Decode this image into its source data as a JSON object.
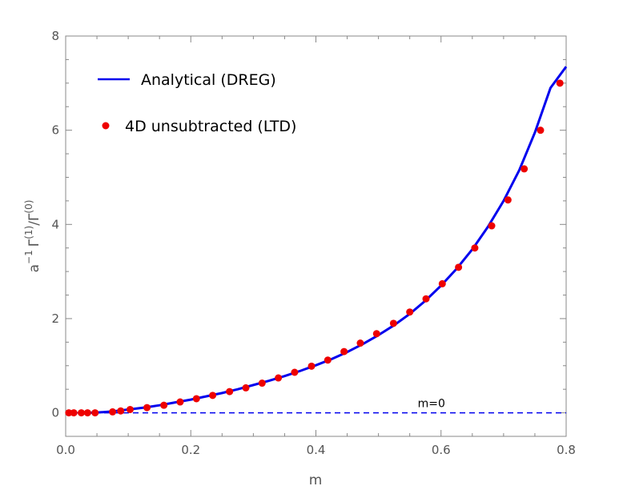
{
  "chart_data": {
    "type": "line",
    "xlabel": "m",
    "ylabel_base": "a",
    "ylabel_exp": "−1",
    "ylabel_gamma": "Γ",
    "ylabel_num_sup": "(1)",
    "ylabel_slash": "/Γ",
    "ylabel_den_sup": "(0)",
    "xlim": [
      0,
      0.8
    ],
    "ylim": [
      -0.5,
      8
    ],
    "xticks": [
      0.0,
      0.2,
      0.4,
      0.6,
      0.8
    ],
    "xtick_labels": [
      "0.0",
      "0.2",
      "0.4",
      "0.6",
      "0.8"
    ],
    "yticks": [
      0,
      2,
      4,
      6,
      8
    ],
    "ytick_labels": [
      "0",
      "2",
      "4",
      "6",
      "8"
    ],
    "legend_position": "top-left",
    "grid": false,
    "series": [
      {
        "name": "Analytical (DREG)",
        "kind": "line",
        "color": "#0000ee",
        "x": [
          0.03,
          0.05,
          0.075,
          0.1,
          0.125,
          0.15,
          0.175,
          0.2,
          0.225,
          0.25,
          0.275,
          0.3,
          0.325,
          0.35,
          0.375,
          0.4,
          0.425,
          0.45,
          0.475,
          0.5,
          0.525,
          0.55,
          0.575,
          0.6,
          0.625,
          0.65,
          0.675,
          0.7,
          0.725,
          0.75,
          0.775,
          0.8
        ],
        "y": [
          0.0,
          0.005,
          0.03,
          0.07,
          0.11,
          0.16,
          0.22,
          0.28,
          0.35,
          0.42,
          0.5,
          0.59,
          0.68,
          0.78,
          0.89,
          1.01,
          1.14,
          1.29,
          1.46,
          1.65,
          1.86,
          2.1,
          2.38,
          2.7,
          3.06,
          3.47,
          3.95,
          4.5,
          5.15,
          5.95,
          6.9,
          7.35
        ]
      },
      {
        "name": "4D unsubtracted (LTD)",
        "kind": "scatter",
        "color": "#ee0000",
        "x": [
          0.005,
          0.013,
          0.025,
          0.035,
          0.047,
          0.075,
          0.088,
          0.103,
          0.13,
          0.157,
          0.183,
          0.209,
          0.235,
          0.262,
          0.288,
          0.314,
          0.34,
          0.366,
          0.393,
          0.419,
          0.445,
          0.471,
          0.497,
          0.524,
          0.55,
          0.576,
          0.602,
          0.628,
          0.654,
          0.681,
          0.707,
          0.733,
          0.759,
          0.79
        ],
        "y": [
          0,
          0,
          0,
          0,
          0,
          0.02,
          0.04,
          0.07,
          0.11,
          0.16,
          0.23,
          0.3,
          0.37,
          0.45,
          0.53,
          0.63,
          0.74,
          0.86,
          0.99,
          1.12,
          1.3,
          1.48,
          1.68,
          1.9,
          2.14,
          2.42,
          2.74,
          3.09,
          3.5,
          3.97,
          4.52,
          5.18,
          6.0,
          7.0
        ]
      },
      {
        "name": "m=0",
        "kind": "dashed",
        "color": "#0000ee",
        "x": [
          0,
          0.8
        ],
        "y": [
          0,
          0
        ]
      }
    ],
    "annotations": [
      {
        "text": "m=0",
        "x": 0.6,
        "y": 0.12
      }
    ]
  }
}
